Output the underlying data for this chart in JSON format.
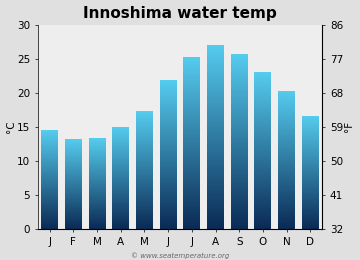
{
  "title": "Innoshima water temp",
  "months": [
    "J",
    "F",
    "M",
    "A",
    "M",
    "J",
    "J",
    "A",
    "S",
    "O",
    "N",
    "D"
  ],
  "values_c": [
    14.5,
    13.2,
    13.3,
    15.0,
    17.3,
    21.8,
    25.2,
    27.0,
    25.6,
    23.0,
    20.3,
    16.6
  ],
  "ylabel_left": "°C",
  "ylabel_right": "°F",
  "yticks_c": [
    0,
    5,
    10,
    15,
    20,
    25,
    30
  ],
  "yticks_f": [
    32,
    41,
    50,
    59,
    68,
    77,
    86
  ],
  "ylim_c": [
    0,
    30
  ],
  "background_color": "#e0e0e0",
  "plot_bg_color": "#eeeeee",
  "bar_color_top": "#55ccee",
  "bar_color_bottom": "#0a2a55",
  "title_fontsize": 11,
  "axis_fontsize": 7.5,
  "watermark": "© www.seatemperature.org",
  "bar_width": 0.72
}
